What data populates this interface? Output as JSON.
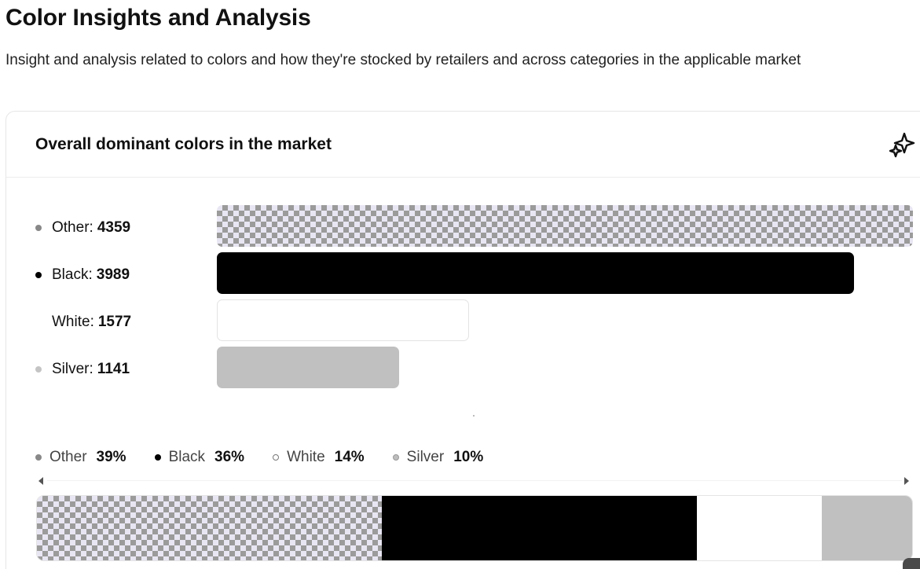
{
  "page": {
    "title": "Color Insights and Analysis",
    "subtitle": "Insight and analysis related to colors and how they're stocked by retailers and across categories in the applicable market"
  },
  "card": {
    "title": "Overall dominant colors in the market",
    "icon": "sparkle-icon"
  },
  "colors": {
    "other_pattern_light": "#e9e6f3",
    "other_pattern_dark": "#9b9b9b",
    "black": "#000000",
    "white": "#ffffff",
    "silver": "#c0c0c0"
  },
  "chart_data": [
    {
      "type": "bar",
      "orientation": "horizontal",
      "categories": [
        "Other",
        "Black",
        "White",
        "Silver"
      ],
      "values": [
        4359,
        3989,
        1577,
        1141
      ],
      "labels": [
        {
          "name": "Other",
          "value": "4359"
        },
        {
          "name": "Black",
          "value": "3989"
        },
        {
          "name": "White",
          "value": "1577"
        },
        {
          "name": "Silver",
          "value": "1141"
        }
      ],
      "xlim": [
        0,
        4359
      ]
    },
    {
      "type": "bar",
      "stacked": true,
      "categories": [
        "Other",
        "Black",
        "White",
        "Silver"
      ],
      "percent": [
        39,
        36,
        14,
        10
      ],
      "labels": [
        {
          "name": "Other",
          "value": "39%"
        },
        {
          "name": "Black",
          "value": "36%"
        },
        {
          "name": "White",
          "value": "14%"
        },
        {
          "name": "Silver",
          "value": "10%"
        }
      ]
    }
  ]
}
